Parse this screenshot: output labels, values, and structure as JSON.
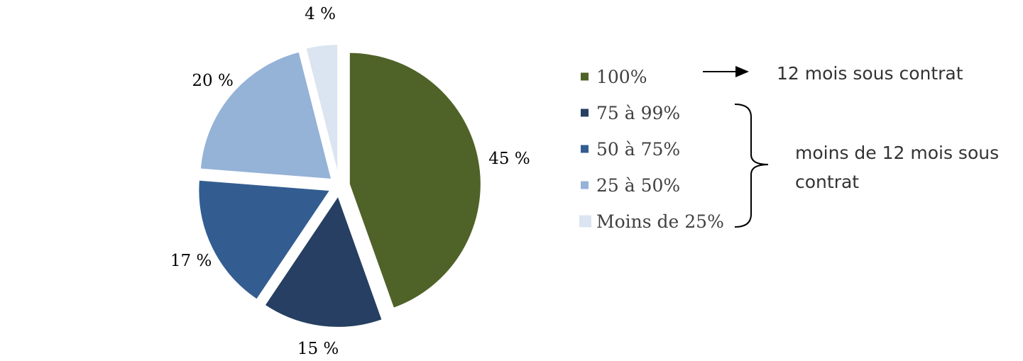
{
  "chart_data": {
    "type": "pie",
    "title": "",
    "slices": [
      {
        "label": "100%",
        "value": 45,
        "data_label": "45 %",
        "color": "#4F6228"
      },
      {
        "label": "75 à 99%",
        "value": 15,
        "data_label": "15 %",
        "color": "#263F62"
      },
      {
        "label": "50 à 75%",
        "value": 17,
        "data_label": "17 %",
        "color": "#335D90"
      },
      {
        "label": "25 à 50%",
        "value": 20,
        "data_label": "20 %",
        "color": "#95B2D7"
      },
      {
        "label": "Moins de 25%",
        "value": 4,
        "data_label": "4 %",
        "color": "#DBE5F1"
      }
    ],
    "legend_position": "right",
    "exploded": true
  },
  "annotations": {
    "full_contract": "12 mois sous contrat",
    "partial_contract_line1": "moins de 12 mois sous",
    "partial_contract_line2": "contrat"
  }
}
